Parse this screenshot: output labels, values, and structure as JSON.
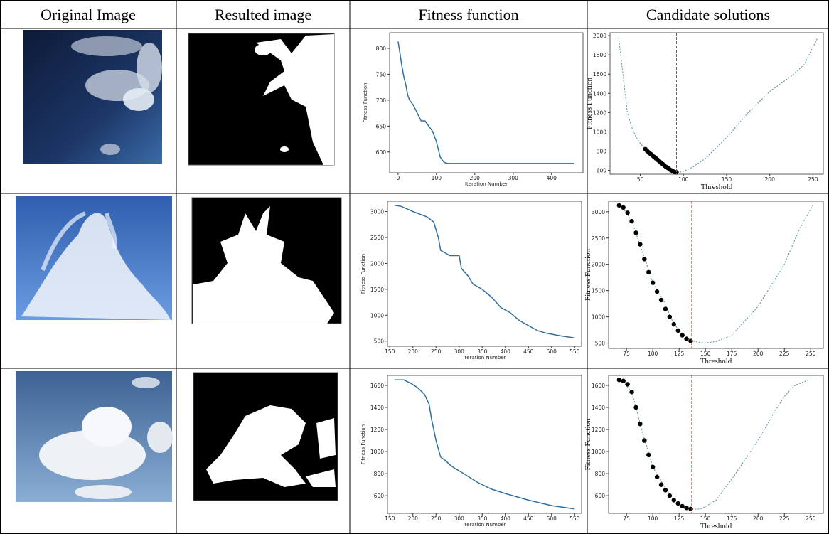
{
  "table": {
    "headers": [
      "Original Image",
      "Resulted image",
      "Fitness function",
      "Candidate solutions"
    ]
  },
  "chart_data": [
    {
      "type": "line",
      "xlabel": "Iteration Number",
      "ylabel": "Fitness Function",
      "color": "#2f6f9f",
      "x": [
        0,
        5,
        10,
        15,
        20,
        25,
        30,
        40,
        50,
        60,
        70,
        80,
        90,
        100,
        110,
        120,
        130,
        140,
        200,
        300,
        400,
        460
      ],
      "values": [
        813,
        790,
        765,
        745,
        730,
        710,
        700,
        690,
        675,
        660,
        660,
        650,
        640,
        620,
        590,
        580,
        578,
        578,
        578,
        578,
        578,
        578
      ],
      "xlim": [
        -22,
        482
      ],
      "xticks": [
        0,
        100,
        200,
        300,
        400
      ],
      "ylim": [
        560,
        830
      ],
      "yticks": [
        600,
        650,
        700,
        750,
        800
      ]
    },
    {
      "type": "scatter",
      "xlabel": "Threshold",
      "ylabel": "Fitness Function",
      "threshold_line": 92,
      "threshold_color": "#c0392b",
      "series": [
        {
          "style": "dashed",
          "color": "#4f8fa0",
          "x": [
            25,
            30,
            35,
            40,
            45,
            50,
            55,
            60,
            70,
            80,
            90,
            95,
            100,
            110,
            125,
            150,
            175,
            200,
            225,
            240,
            255
          ],
          "values": [
            1980,
            1600,
            1200,
            1050,
            950,
            880,
            830,
            780,
            700,
            630,
            585,
            580,
            590,
            630,
            720,
            940,
            1200,
            1420,
            1580,
            1700,
            1970
          ]
        },
        {
          "style": "dots",
          "color": "#000000",
          "x": [
            56,
            58,
            60,
            62,
            64,
            66,
            68,
            70,
            72,
            74,
            76,
            78,
            80,
            82,
            84,
            86,
            88,
            90,
            92
          ],
          "values": [
            820,
            800,
            785,
            770,
            755,
            740,
            725,
            710,
            695,
            680,
            665,
            650,
            635,
            625,
            610,
            600,
            590,
            582,
            580
          ]
        }
      ],
      "xlim": [
        15,
        262
      ],
      "xticks": [
        50,
        100,
        150,
        200,
        250
      ],
      "ylim": [
        560,
        2030
      ],
      "yticks": [
        600,
        800,
        1000,
        1200,
        1400,
        1600,
        1800,
        2000
      ]
    },
    {
      "type": "line",
      "xlabel": "Iteration Number",
      "ylabel": "Fitness Function",
      "color": "#2f6f9f",
      "x": [
        160,
        175,
        200,
        230,
        245,
        255,
        260,
        280,
        300,
        305,
        320,
        330,
        350,
        370,
        390,
        410,
        430,
        450,
        470,
        490,
        520,
        550
      ],
      "values": [
        3120,
        3100,
        3000,
        2900,
        2800,
        2500,
        2250,
        2150,
        2150,
        1900,
        1750,
        1600,
        1500,
        1350,
        1150,
        1050,
        900,
        800,
        700,
        650,
        600,
        560
      ],
      "xlim": [
        145,
        565
      ],
      "xticks": [
        150,
        200,
        250,
        300,
        350,
        400,
        450,
        500,
        550
      ],
      "ylim": [
        400,
        3200
      ],
      "yticks": [
        500,
        1000,
        1500,
        2000,
        2500,
        3000
      ]
    },
    {
      "type": "scatter",
      "xlabel": "Threshold",
      "ylabel": "Fitness Function",
      "threshold_line": 137,
      "threshold_color": "#c0392b",
      "series": [
        {
          "style": "dashed",
          "color": "#4f8fa0",
          "x": [
            70,
            80,
            90,
            100,
            110,
            120,
            130,
            138,
            145,
            150,
            160,
            175,
            200,
            225,
            240,
            252
          ],
          "values": [
            3120,
            2820,
            2250,
            1650,
            1320,
            860,
            650,
            540,
            510,
            505,
            530,
            650,
            1200,
            2000,
            2700,
            3120
          ]
        },
        {
          "style": "dots",
          "color": "#000000",
          "x": [
            68,
            72,
            76,
            80,
            84,
            88,
            92,
            96,
            100,
            104,
            108,
            112,
            116,
            120,
            124,
            128,
            132,
            136
          ],
          "values": [
            3120,
            3080,
            2980,
            2820,
            2600,
            2380,
            2100,
            1850,
            1650,
            1480,
            1320,
            1150,
            1000,
            860,
            740,
            650,
            580,
            540
          ]
        }
      ],
      "xlim": [
        58,
        262
      ],
      "xticks": [
        75,
        100,
        125,
        150,
        175,
        200,
        225,
        250
      ],
      "ylim": [
        400,
        3200
      ],
      "yticks": [
        500,
        1000,
        1500,
        2000,
        2500,
        3000
      ]
    },
    {
      "type": "line",
      "xlabel": "Iteration Number",
      "ylabel": "Fitness Function",
      "color": "#2f6f9f",
      "x": [
        160,
        180,
        195,
        210,
        225,
        235,
        240,
        250,
        260,
        270,
        280,
        290,
        310,
        340,
        370,
        400,
        450,
        500,
        550
      ],
      "values": [
        1650,
        1650,
        1620,
        1580,
        1520,
        1430,
        1300,
        1100,
        950,
        920,
        880,
        850,
        800,
        720,
        660,
        620,
        560,
        510,
        480
      ],
      "xlim": [
        145,
        565
      ],
      "xticks": [
        150,
        200,
        250,
        300,
        350,
        400,
        450,
        500,
        550
      ],
      "ylim": [
        440,
        1690
      ],
      "yticks": [
        600,
        800,
        1000,
        1200,
        1400,
        1600
      ]
    },
    {
      "type": "scatter",
      "xlabel": "Threshold",
      "ylabel": "Fitness Function",
      "threshold_line": 137,
      "threshold_color": "#c0392b",
      "series": [
        {
          "style": "dashed",
          "color": "#4f8fa0",
          "x": [
            70,
            80,
            90,
            100,
            110,
            120,
            130,
            138,
            145,
            150,
            160,
            175,
            200,
            215,
            225,
            235,
            248
          ],
          "values": [
            1650,
            1540,
            1180,
            860,
            700,
            560,
            505,
            478,
            480,
            500,
            560,
            750,
            1100,
            1350,
            1500,
            1600,
            1650
          ]
        },
        {
          "style": "dots",
          "color": "#000000",
          "x": [
            68,
            72,
            76,
            80,
            84,
            88,
            92,
            96,
            100,
            104,
            108,
            112,
            116,
            120,
            124,
            128,
            132,
            136
          ],
          "values": [
            1650,
            1640,
            1610,
            1540,
            1400,
            1250,
            1100,
            970,
            860,
            770,
            700,
            650,
            600,
            560,
            530,
            505,
            490,
            480
          ]
        }
      ],
      "xlim": [
        58,
        262
      ],
      "xticks": [
        75,
        100,
        125,
        150,
        175,
        200,
        225,
        250
      ],
      "ylim": [
        440,
        1690
      ],
      "yticks": [
        600,
        800,
        1000,
        1200,
        1400,
        1600
      ]
    }
  ]
}
